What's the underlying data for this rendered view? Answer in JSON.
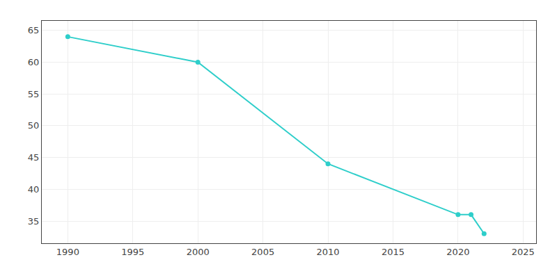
{
  "chart_data": {
    "type": "line",
    "x": [
      1990,
      2000,
      2010,
      2020,
      2021,
      2022
    ],
    "values": [
      64,
      60,
      44,
      36,
      36,
      33
    ],
    "color": "#2ececa",
    "marker": "circle",
    "xlim": [
      1988,
      2026
    ],
    "ylim": [
      31.5,
      66.5
    ],
    "xticks": [
      1990,
      1995,
      2000,
      2005,
      2010,
      2015,
      2020,
      2025
    ],
    "yticks": [
      35,
      40,
      45,
      50,
      55,
      60,
      65
    ],
    "grid": true
  }
}
